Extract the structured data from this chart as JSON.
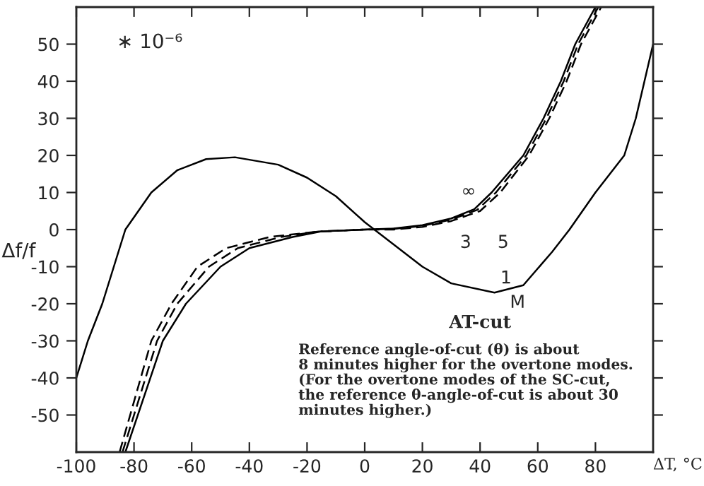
{
  "chart_data": {
    "type": "line",
    "xlabel": "ΔT, °C",
    "ylabel": "Δf/f",
    "xlim": [
      -100,
      100
    ],
    "ylim": [
      -60,
      60
    ],
    "xticks": [
      -100,
      -80,
      -60,
      -40,
      -20,
      0,
      20,
      40,
      60,
      80
    ],
    "yticks": [
      -50,
      -40,
      -30,
      -20,
      -10,
      0,
      10,
      20,
      30,
      40,
      50
    ],
    "grid": false,
    "marker": "none",
    "series": [
      {
        "color": "#000000",
        "line_style": "solid",
        "x": [
          -100,
          -96,
          -91,
          -87,
          -83,
          -74,
          -65,
          -55,
          -45,
          -30,
          -20,
          -10,
          0,
          10,
          20,
          30,
          45,
          55,
          65,
          71,
          80,
          90,
          94,
          97,
          100
        ],
        "values": [
          -40,
          -30,
          -20,
          -10,
          0,
          10,
          16,
          19,
          19.5,
          17.5,
          14,
          9,
          2,
          -4,
          -10,
          -14.5,
          -17,
          -15,
          -6,
          0,
          10,
          20,
          30,
          40,
          50
        ]
      },
      {
        "color": "#000000",
        "line_style": "solid",
        "x": [
          -83,
          -70,
          -62,
          -50,
          -40,
          -25,
          -15,
          0,
          10,
          20,
          30,
          38,
          44,
          55,
          62,
          68,
          73,
          80
        ],
        "values": [
          -60,
          -30,
          -20,
          -10,
          -5,
          -2,
          -0.5,
          0,
          0.3,
          1.2,
          3,
          5.5,
          10,
          20,
          30,
          40,
          50,
          60
        ]
      },
      {
        "color": "#000000",
        "line_style": "dashed",
        "x": [
          -84,
          -72,
          -65,
          -54,
          -44,
          -29,
          -16,
          0,
          10,
          20,
          30,
          39,
          45.5,
          56,
          63,
          69,
          74,
          81
        ],
        "values": [
          -60,
          -30,
          -20,
          -10,
          -5,
          -2,
          -0.5,
          0,
          0.2,
          1,
          2.7,
          5.3,
          10,
          20,
          30,
          40,
          50,
          60
        ]
      },
      {
        "color": "#000000",
        "line_style": "dashed",
        "x": [
          -85,
          -74,
          -67,
          -58,
          -48,
          -33,
          -17,
          0,
          10,
          20,
          30,
          40,
          47,
          57,
          64,
          70,
          75,
          82
        ],
        "values": [
          -60,
          -30,
          -20,
          -10,
          -5,
          -2,
          -0.6,
          0,
          0,
          0.7,
          2.3,
          5,
          10,
          20,
          30,
          40,
          50,
          60
        ]
      }
    ],
    "annotations": [
      "∗ 10⁻⁶",
      "AT-cut",
      "Reference angle-of-cut (θ) is about\n8 minutes higher for the overtone modes.\n(For the overtone modes of the SC-cut,\nthe reference θ-angle-of-cut is about 30\nminutes higher.)",
      "1",
      "M",
      "∞",
      "3",
      "5"
    ]
  }
}
